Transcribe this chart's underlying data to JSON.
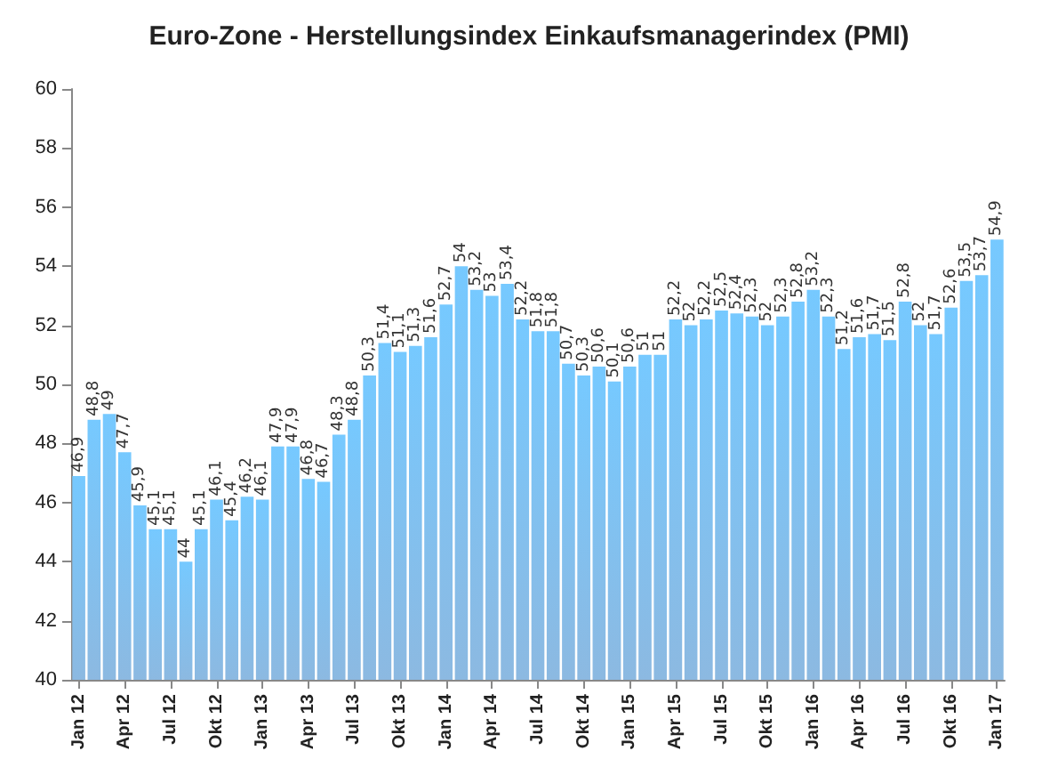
{
  "chart_data": {
    "type": "bar",
    "title": "Euro-Zone - Herstellungsindex Einkaufsmanagerindex (PMI)",
    "categories": [
      "Jan 12",
      null,
      null,
      "Apr 12",
      null,
      null,
      "Jul 12",
      null,
      null,
      "Okt 12",
      null,
      null,
      "Jan 13",
      null,
      null,
      "Apr 13",
      null,
      null,
      "Jul 13",
      null,
      null,
      "Okt 13",
      null,
      null,
      "Jan 14",
      null,
      null,
      "Apr 14",
      null,
      null,
      "Jul 14",
      null,
      null,
      "Okt 14",
      null,
      null,
      "Jan 15",
      null,
      null,
      "Apr 15",
      null,
      null,
      "Jul 15",
      null,
      null,
      "Okt 15",
      null,
      null,
      "Jan 16",
      null,
      null,
      "Apr 16",
      null,
      null,
      "Jul 16",
      null,
      null,
      "Okt 16",
      null,
      null,
      "Jan 17"
    ],
    "values": [
      46.9,
      48.8,
      49,
      47.7,
      45.9,
      45.1,
      45.1,
      44,
      45.1,
      46.1,
      45.4,
      46.2,
      46.1,
      47.9,
      47.9,
      46.8,
      46.7,
      48.3,
      48.8,
      50.3,
      51.4,
      51.1,
      51.3,
      51.6,
      52.7,
      54,
      53.2,
      53,
      53.4,
      52.2,
      51.8,
      51.8,
      50.7,
      50.3,
      50.6,
      50.1,
      50.6,
      51,
      51,
      52.2,
      52,
      52.2,
      52.5,
      52.4,
      52.3,
      52,
      52.3,
      52.8,
      53.2,
      52.3,
      51.2,
      51.6,
      51.7,
      51.5,
      52.8,
      52,
      51.7,
      52.6,
      53.5,
      53.7,
      54.9
    ],
    "value_labels": [
      "46,9",
      "48,8",
      "49",
      "47,7",
      "45,9",
      "45,1",
      "45,1",
      "44",
      "45,1",
      "46,1",
      "45,4",
      "46,2",
      "46,1",
      "47,9",
      "47,9",
      "46,8",
      "46,7",
      "48,3",
      "48,8",
      "50,3",
      "51,4",
      "51,1",
      "51,3",
      "51,6",
      "52,7",
      "54",
      "53,2",
      "53",
      "53,4",
      "52,2",
      "51,8",
      "51,8",
      "50,7",
      "50,3",
      "50,6",
      "50,1",
      "50,6",
      "51",
      "51",
      "52,2",
      "52",
      "52,2",
      "52,5",
      "52,4",
      "52,3",
      "52",
      "52,3",
      "52,8",
      "53,2",
      "52,3",
      "51,2",
      "51,6",
      "51,7",
      "51,5",
      "52,8",
      "52",
      "51,7",
      "52,6",
      "53,5",
      "53,7",
      "54,9"
    ],
    "color": "#5b9bd5",
    "ylim": [
      40,
      60
    ],
    "yticks": [
      40,
      42,
      44,
      46,
      48,
      50,
      52,
      54,
      56,
      58,
      60
    ],
    "grid": false
  }
}
